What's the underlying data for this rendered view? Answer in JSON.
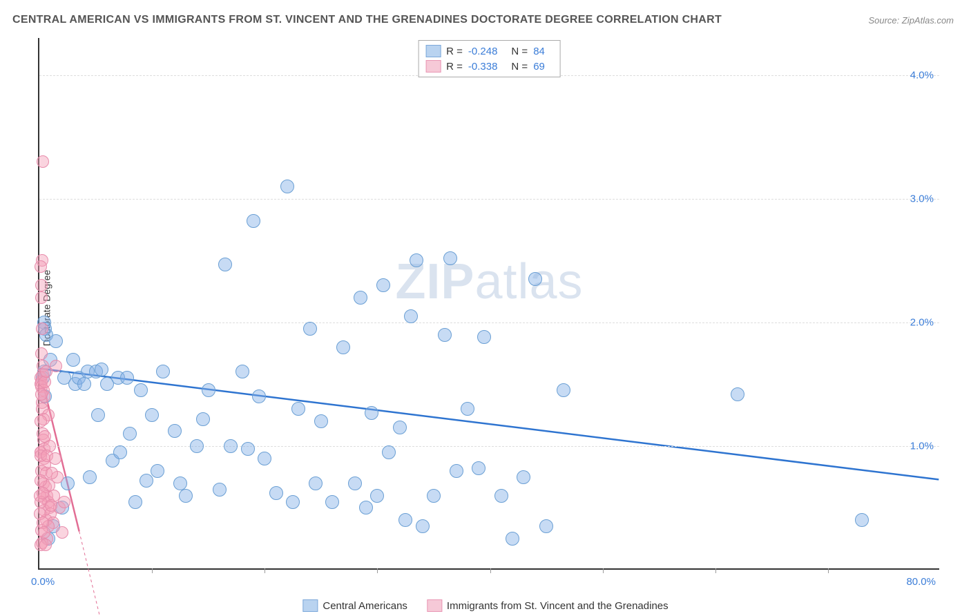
{
  "title": "CENTRAL AMERICAN VS IMMIGRANTS FROM ST. VINCENT AND THE GRENADINES DOCTORATE DEGREE CORRELATION CHART",
  "source": "Source: ZipAtlas.com",
  "watermark": "ZIPatlas",
  "y_axis": {
    "label": "Doctorate Degree",
    "min": 0,
    "max": 4.3,
    "ticks": [
      {
        "value": 1.0,
        "label": "1.0%"
      },
      {
        "value": 2.0,
        "label": "2.0%"
      },
      {
        "value": 3.0,
        "label": "3.0%"
      },
      {
        "value": 4.0,
        "label": "4.0%"
      }
    ]
  },
  "x_axis": {
    "min": 0,
    "max": 80,
    "left_label": "0.0%",
    "right_label": "80.0%",
    "minor_ticks": [
      10,
      20,
      30,
      40,
      50,
      60,
      70
    ]
  },
  "series": [
    {
      "name": "Central Americans",
      "color_fill": "rgba(130, 175, 230, 0.45)",
      "color_stroke": "#6a9fd4",
      "swatch_fill": "#b9d3f0",
      "swatch_stroke": "#7ca8da",
      "R_label": "R = ",
      "R_value": "-0.248",
      "N_label": "N = ",
      "N_value": "84",
      "trend": {
        "x1": 0,
        "y1": 1.62,
        "x2": 80,
        "y2": 0.72,
        "color": "#2e74d0",
        "width": 2.5,
        "dash": ""
      },
      "point_radius": 10,
      "points": [
        [
          0.3,
          1.55
        ],
        [
          0.4,
          2.0
        ],
        [
          0.5,
          1.95
        ],
        [
          0.6,
          1.9
        ],
        [
          0.4,
          1.6
        ],
        [
          0.5,
          1.4
        ],
        [
          0.8,
          0.25
        ],
        [
          1.0,
          1.7
        ],
        [
          1.2,
          0.35
        ],
        [
          1.5,
          1.85
        ],
        [
          2.0,
          0.5
        ],
        [
          2.2,
          1.55
        ],
        [
          2.5,
          0.7
        ],
        [
          3.0,
          1.7
        ],
        [
          3.2,
          1.5
        ],
        [
          3.5,
          1.55
        ],
        [
          4.0,
          1.5
        ],
        [
          4.3,
          1.6
        ],
        [
          4.5,
          0.75
        ],
        [
          5.0,
          1.6
        ],
        [
          5.2,
          1.25
        ],
        [
          5.5,
          1.62
        ],
        [
          6.0,
          1.5
        ],
        [
          6.5,
          0.88
        ],
        [
          7.0,
          1.55
        ],
        [
          7.2,
          0.95
        ],
        [
          7.8,
          1.55
        ],
        [
          8.0,
          1.1
        ],
        [
          8.5,
          0.55
        ],
        [
          9.0,
          1.45
        ],
        [
          9.5,
          0.72
        ],
        [
          10.0,
          1.25
        ],
        [
          10.5,
          0.8
        ],
        [
          11.0,
          1.6
        ],
        [
          12.0,
          1.12
        ],
        [
          12.5,
          0.7
        ],
        [
          13.0,
          0.6
        ],
        [
          14.0,
          1.0
        ],
        [
          14.5,
          1.22
        ],
        [
          15.0,
          1.45
        ],
        [
          16.0,
          0.65
        ],
        [
          16.5,
          2.47
        ],
        [
          17.0,
          1.0
        ],
        [
          18.0,
          1.6
        ],
        [
          18.5,
          0.98
        ],
        [
          19.0,
          2.82
        ],
        [
          19.5,
          1.4
        ],
        [
          20.0,
          0.9
        ],
        [
          21.0,
          0.62
        ],
        [
          22.0,
          3.1
        ],
        [
          22.5,
          0.55
        ],
        [
          23.0,
          1.3
        ],
        [
          24.0,
          1.95
        ],
        [
          24.5,
          0.7
        ],
        [
          25.0,
          1.2
        ],
        [
          26.0,
          0.55
        ],
        [
          27.0,
          1.8
        ],
        [
          28.0,
          0.7
        ],
        [
          28.5,
          2.2
        ],
        [
          29.0,
          0.5
        ],
        [
          29.5,
          1.27
        ],
        [
          30.0,
          0.6
        ],
        [
          31.0,
          0.95
        ],
        [
          32.0,
          1.15
        ],
        [
          32.5,
          0.4
        ],
        [
          33.0,
          2.05
        ],
        [
          33.5,
          2.5
        ],
        [
          34.0,
          0.35
        ],
        [
          35.0,
          0.6
        ],
        [
          36.0,
          1.9
        ],
        [
          36.5,
          2.52
        ],
        [
          37.0,
          0.8
        ],
        [
          38.0,
          1.3
        ],
        [
          39.0,
          0.82
        ],
        [
          41.0,
          0.6
        ],
        [
          42.0,
          0.25
        ],
        [
          43.0,
          0.75
        ],
        [
          44.0,
          2.35
        ],
        [
          45.0,
          0.35
        ],
        [
          46.5,
          1.45
        ],
        [
          62.0,
          1.42
        ],
        [
          73.0,
          0.4
        ],
        [
          39.5,
          1.88
        ],
        [
          30.5,
          2.3
        ]
      ]
    },
    {
      "name": "Immigrants from St. Vincent and the Grenadines",
      "color_fill": "rgba(245, 160, 185, 0.45)",
      "color_stroke": "#e78bab",
      "swatch_fill": "#f6c9d7",
      "swatch_stroke": "#e996b4",
      "R_label": "R = ",
      "R_value": "-0.338",
      "N_label": "N = ",
      "N_value": "69",
      "trend": {
        "x1": 0,
        "y1": 1.6,
        "x2": 3.5,
        "y2": 0.3,
        "color": "#e26d94",
        "width": 2.5,
        "dash": ""
      },
      "trend_ext": {
        "x1": 3.5,
        "y1": 0.3,
        "x2": 5.5,
        "y2": -0.45,
        "color": "#e26d94",
        "width": 1,
        "dash": "4,4"
      },
      "point_radius": 9,
      "points": [
        [
          0.1,
          1.55
        ],
        [
          0.15,
          1.5
        ],
        [
          0.16,
          1.52
        ],
        [
          0.2,
          1.48
        ],
        [
          0.22,
          1.35
        ],
        [
          0.25,
          1.3
        ],
        [
          0.2,
          1.75
        ],
        [
          0.3,
          1.65
        ],
        [
          0.35,
          1.45
        ],
        [
          0.4,
          1.4
        ],
        [
          0.3,
          1.1
        ],
        [
          0.35,
          1.05
        ],
        [
          0.15,
          0.95
        ],
        [
          0.4,
          0.9
        ],
        [
          0.45,
          0.98
        ],
        [
          0.5,
          0.85
        ],
        [
          0.2,
          0.8
        ],
        [
          0.6,
          0.78
        ],
        [
          0.35,
          0.7
        ],
        [
          0.55,
          0.67
        ],
        [
          0.7,
          0.6
        ],
        [
          0.4,
          0.58
        ],
        [
          0.8,
          0.55
        ],
        [
          0.9,
          0.5
        ],
        [
          0.45,
          0.48
        ],
        [
          1.0,
          0.45
        ],
        [
          0.6,
          0.4
        ],
        [
          1.2,
          0.38
        ],
        [
          0.7,
          0.25
        ],
        [
          1.3,
          0.6
        ],
        [
          0.2,
          2.2
        ],
        [
          0.25,
          2.5
        ],
        [
          0.12,
          2.45
        ],
        [
          0.3,
          3.3
        ],
        [
          1.5,
          1.65
        ],
        [
          1.6,
          0.75
        ],
        [
          1.8,
          0.5
        ],
        [
          2.0,
          0.3
        ],
        [
          2.2,
          0.55
        ],
        [
          0.25,
          0.22
        ],
        [
          0.1,
          0.95
        ],
        [
          0.12,
          0.92
        ],
        [
          0.08,
          0.6
        ],
        [
          0.14,
          0.55
        ],
        [
          0.05,
          0.45
        ],
        [
          0.15,
          0.2
        ],
        [
          0.28,
          1.58
        ],
        [
          0.5,
          1.52
        ],
        [
          0.6,
          1.6
        ],
        [
          0.8,
          1.25
        ],
        [
          0.95,
          1.0
        ],
        [
          1.1,
          0.78
        ],
        [
          0.8,
          0.35
        ],
        [
          0.55,
          0.2
        ],
        [
          0.25,
          1.95
        ],
        [
          0.18,
          1.42
        ],
        [
          0.38,
          1.22
        ],
        [
          0.48,
          1.08
        ],
        [
          0.65,
          0.92
        ],
        [
          0.85,
          0.68
        ],
        [
          1.05,
          0.52
        ],
        [
          1.4,
          0.9
        ],
        [
          0.18,
          0.32
        ],
        [
          0.3,
          0.38
        ],
        [
          0.42,
          0.3
        ],
        [
          0.2,
          2.3
        ],
        [
          0.12,
          1.2
        ],
        [
          0.15,
          0.72
        ],
        [
          0.3,
          0.62
        ]
      ]
    }
  ],
  "legend_bottom": [
    {
      "label": "Central Americans",
      "swatch_fill": "#b9d3f0",
      "swatch_stroke": "#7ca8da"
    },
    {
      "label": "Immigrants from St. Vincent and the Grenadines",
      "swatch_fill": "#f6c9d7",
      "swatch_stroke": "#e996b4"
    }
  ]
}
